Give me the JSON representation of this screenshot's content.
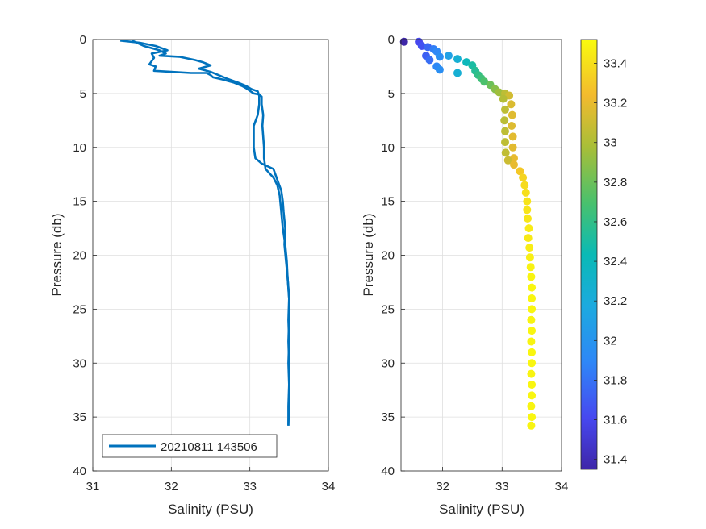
{
  "chart_data": [
    {
      "type": "line",
      "xlabel": "Salinity (PSU)",
      "ylabel": "Pressure (db)",
      "xlim": [
        31,
        34
      ],
      "ylim": [
        0,
        40
      ],
      "y_reversed": true,
      "grid": true,
      "xticks": [
        31,
        32,
        33,
        34
      ],
      "yticks": [
        0,
        5,
        10,
        15,
        20,
        25,
        30,
        35,
        40
      ],
      "legend_location": "bottom-left",
      "series": [
        {
          "name": "20210811 143506",
          "color": "#0072BD",
          "points": [
            [
              31.35,
              0.1
            ],
            [
              31.6,
              0.3
            ],
            [
              31.8,
              0.6
            ],
            [
              31.95,
              1.0
            ],
            [
              31.75,
              1.3
            ],
            [
              31.78,
              1.7
            ],
            [
              31.75,
              2.0
            ],
            [
              31.72,
              2.3
            ],
            [
              31.8,
              2.5
            ],
            [
              31.78,
              2.9
            ],
            [
              32.0,
              3.0
            ],
            [
              32.25,
              3.1
            ],
            [
              32.45,
              3.1
            ],
            [
              32.5,
              3.3
            ],
            [
              32.53,
              3.5
            ],
            [
              32.65,
              3.7
            ],
            [
              32.8,
              4.0
            ],
            [
              32.9,
              4.3
            ],
            [
              32.95,
              4.5
            ],
            [
              33.05,
              5.0
            ],
            [
              33.12,
              5.1
            ],
            [
              33.15,
              5.3
            ],
            [
              33.15,
              6.0
            ],
            [
              33.17,
              7.0
            ],
            [
              33.16,
              8.0
            ],
            [
              33.17,
              9.0
            ],
            [
              33.18,
              10.0
            ],
            [
              33.18,
              11.0
            ],
            [
              33.2,
              12.0
            ],
            [
              33.3,
              12.8
            ],
            [
              33.35,
              13.5
            ],
            [
              33.38,
              14.5
            ],
            [
              33.4,
              16.0
            ],
            [
              33.42,
              17.5
            ],
            [
              33.45,
              19.0
            ],
            [
              33.47,
              20.5
            ],
            [
              33.48,
              22.0
            ],
            [
              33.5,
              24.0
            ],
            [
              33.5,
              26.0
            ],
            [
              33.49,
              28.0
            ],
            [
              33.5,
              30.0
            ],
            [
              33.5,
              32.0
            ],
            [
              33.49,
              34.0
            ],
            [
              33.49,
              35.8
            ]
          ]
        },
        {
          "name": "",
          "color": "#0072BD",
          "points": [
            [
              31.5,
              0.1
            ],
            [
              31.65,
              0.6
            ],
            [
              31.85,
              1.0
            ],
            [
              31.93,
              1.3
            ],
            [
              31.85,
              1.5
            ],
            [
              32.1,
              1.6
            ],
            [
              32.3,
              1.9
            ],
            [
              32.4,
              2.1
            ],
            [
              32.5,
              2.4
            ],
            [
              32.35,
              2.7
            ],
            [
              32.5,
              3.0
            ],
            [
              32.6,
              3.3
            ],
            [
              32.7,
              3.6
            ],
            [
              32.85,
              4.0
            ],
            [
              32.95,
              4.3
            ],
            [
              33.02,
              4.6
            ],
            [
              33.1,
              4.8
            ],
            [
              33.12,
              5.2
            ],
            [
              33.12,
              6.0
            ],
            [
              33.1,
              7.0
            ],
            [
              33.05,
              8.0
            ],
            [
              33.05,
              9.0
            ],
            [
              33.05,
              10.0
            ],
            [
              33.07,
              11.0
            ],
            [
              33.15,
              11.5
            ],
            [
              33.3,
              12.0
            ],
            [
              33.35,
              13.0
            ],
            [
              33.4,
              14.0
            ],
            [
              33.42,
              15.0
            ],
            [
              33.43,
              16.0
            ],
            [
              33.45,
              17.5
            ],
            [
              33.44,
              19.0
            ],
            [
              33.46,
              20.5
            ],
            [
              33.48,
              22.0
            ],
            [
              33.5,
              24.0
            ],
            [
              33.49,
              26.0
            ],
            [
              33.5,
              28.0
            ],
            [
              33.49,
              30.0
            ],
            [
              33.5,
              32.0
            ],
            [
              33.5,
              34.0
            ],
            [
              33.49,
              35.8
            ]
          ]
        }
      ]
    },
    {
      "type": "scatter",
      "xlabel": "Salinity (PSU)",
      "ylabel": "Pressure (db)",
      "xlim": [
        31.3,
        34
      ],
      "ylim": [
        0,
        40
      ],
      "y_reversed": true,
      "grid": true,
      "xticks": [
        32,
        33,
        34
      ],
      "yticks": [
        0,
        5,
        10,
        15,
        20,
        25,
        30,
        35,
        40
      ],
      "colormap": "parula",
      "color_by": "salinity",
      "colorbar": {
        "range": [
          31.35,
          33.52
        ],
        "ticks": [
          31.4,
          31.6,
          31.8,
          32,
          32.2,
          32.4,
          32.6,
          32.8,
          33,
          33.2,
          33.4
        ]
      },
      "points": [
        [
          31.35,
          0.2
        ],
        [
          31.6,
          0.2
        ],
        [
          31.65,
          0.6
        ],
        [
          31.75,
          0.7
        ],
        [
          31.85,
          0.9
        ],
        [
          31.9,
          1.1
        ],
        [
          31.72,
          1.5
        ],
        [
          31.78,
          1.9
        ],
        [
          31.95,
          1.6
        ],
        [
          32.1,
          1.5
        ],
        [
          32.25,
          1.8
        ],
        [
          31.9,
          2.5
        ],
        [
          31.95,
          2.8
        ],
        [
          32.4,
          2.1
        ],
        [
          32.5,
          2.4
        ],
        [
          32.25,
          3.1
        ],
        [
          32.55,
          2.9
        ],
        [
          32.6,
          3.3
        ],
        [
          32.65,
          3.6
        ],
        [
          32.7,
          3.9
        ],
        [
          32.8,
          4.2
        ],
        [
          32.88,
          4.6
        ],
        [
          32.95,
          4.9
        ],
        [
          33.05,
          5.0
        ],
        [
          33.12,
          5.2
        ],
        [
          33.15,
          6.0
        ],
        [
          33.17,
          7.0
        ],
        [
          33.16,
          8.0
        ],
        [
          33.18,
          9.0
        ],
        [
          33.18,
          10.0
        ],
        [
          33.2,
          11.0
        ],
        [
          33.02,
          5.5
        ],
        [
          33.05,
          6.5
        ],
        [
          33.04,
          7.5
        ],
        [
          33.05,
          8.5
        ],
        [
          33.05,
          9.5
        ],
        [
          33.06,
          10.5
        ],
        [
          33.1,
          11.2
        ],
        [
          33.2,
          11.6
        ],
        [
          33.3,
          12.2
        ],
        [
          33.35,
          12.8
        ],
        [
          33.38,
          13.5
        ],
        [
          33.4,
          14.2
        ],
        [
          33.42,
          15.0
        ],
        [
          33.42,
          15.8
        ],
        [
          33.43,
          16.6
        ],
        [
          33.45,
          17.5
        ],
        [
          33.44,
          18.4
        ],
        [
          33.46,
          19.3
        ],
        [
          33.47,
          20.2
        ],
        [
          33.48,
          21.1
        ],
        [
          33.49,
          22.0
        ],
        [
          33.5,
          23.0
        ],
        [
          33.5,
          24.0
        ],
        [
          33.5,
          25.0
        ],
        [
          33.49,
          26.0
        ],
        [
          33.5,
          27.0
        ],
        [
          33.49,
          28.0
        ],
        [
          33.5,
          29.0
        ],
        [
          33.5,
          30.0
        ],
        [
          33.49,
          31.0
        ],
        [
          33.5,
          32.0
        ],
        [
          33.5,
          33.0
        ],
        [
          33.49,
          34.0
        ],
        [
          33.5,
          35.0
        ],
        [
          33.49,
          35.8
        ]
      ]
    }
  ]
}
